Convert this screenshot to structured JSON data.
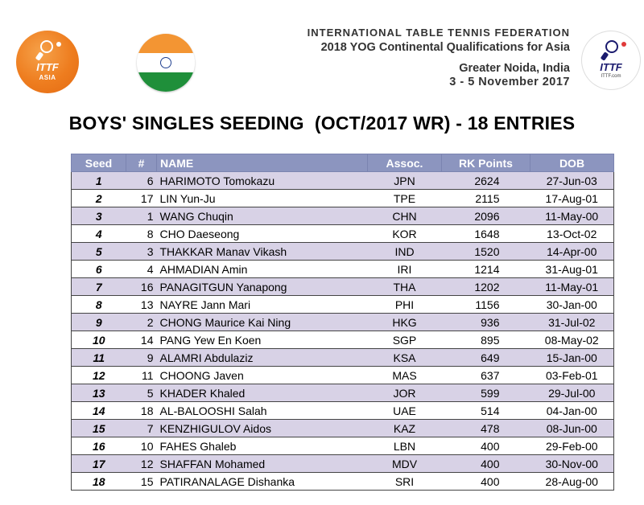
{
  "header": {
    "left_logo": {
      "ittf": "ITTF",
      "region": "ASIA",
      "icon": "ittf-asia-logo-icon"
    },
    "flag": {
      "icon": "india-flag-icon"
    },
    "federation": "INTERNATIONAL TABLE TENNIS FEDERATION",
    "event": "2018 YOG Continental Qualifications for Asia",
    "venue": "Greater Noida, India",
    "dates": "3 - 5 November 2017",
    "right_logo": {
      "ittf": "ITTF",
      "url": "ITTF.com",
      "icon": "ittf-logo-icon"
    }
  },
  "title": "BOYS' SINGLES SEEDING  (OCT/2017 WR) - 18 ENTRIES",
  "table": {
    "columns": {
      "seed": "Seed",
      "num": "#",
      "name": "NAME",
      "assoc": "Assoc.",
      "rk_points": "RK Points",
      "dob": "DOB"
    },
    "rows": [
      {
        "seed": "1",
        "num": "6",
        "name": "HARIMOTO Tomokazu",
        "assoc": "JPN",
        "rk_points": "2624",
        "dob": "27-Jun-03"
      },
      {
        "seed": "2",
        "num": "17",
        "name": "LIN Yun-Ju",
        "assoc": "TPE",
        "rk_points": "2115",
        "dob": "17-Aug-01"
      },
      {
        "seed": "3",
        "num": "1",
        "name": "WANG Chuqin",
        "assoc": "CHN",
        "rk_points": "2096",
        "dob": "11-May-00"
      },
      {
        "seed": "4",
        "num": "8",
        "name": "CHO Daeseong",
        "assoc": "KOR",
        "rk_points": "1648",
        "dob": "13-Oct-02"
      },
      {
        "seed": "5",
        "num": "3",
        "name": "THAKKAR Manav Vikash",
        "assoc": "IND",
        "rk_points": "1520",
        "dob": "14-Apr-00"
      },
      {
        "seed": "6",
        "num": "4",
        "name": "AHMADIAN Amin",
        "assoc": "IRI",
        "rk_points": "1214",
        "dob": "31-Aug-01"
      },
      {
        "seed": "7",
        "num": "16",
        "name": "PANAGITGUN Yanapong",
        "assoc": "THA",
        "rk_points": "1202",
        "dob": "11-May-01"
      },
      {
        "seed": "8",
        "num": "13",
        "name": "NAYRE Jann Mari",
        "assoc": "PHI",
        "rk_points": "1156",
        "dob": "30-Jan-00"
      },
      {
        "seed": "9",
        "num": "2",
        "name": "CHONG Maurice Kai Ning",
        "assoc": "HKG",
        "rk_points": "936",
        "dob": "31-Jul-02"
      },
      {
        "seed": "10",
        "num": "14",
        "name": "PANG Yew En Koen",
        "assoc": "SGP",
        "rk_points": "895",
        "dob": "08-May-02"
      },
      {
        "seed": "11",
        "num": "9",
        "name": "ALAMRI Abdulaziz",
        "assoc": "KSA",
        "rk_points": "649",
        "dob": "15-Jan-00"
      },
      {
        "seed": "12",
        "num": "11",
        "name": "CHOONG Javen",
        "assoc": "MAS",
        "rk_points": "637",
        "dob": "03-Feb-01"
      },
      {
        "seed": "13",
        "num": "5",
        "name": "KHADER Khaled",
        "assoc": "JOR",
        "rk_points": "599",
        "dob": "29-Jul-00"
      },
      {
        "seed": "14",
        "num": "18",
        "name": "AL-BALOOSHI Salah",
        "assoc": "UAE",
        "rk_points": "514",
        "dob": "04-Jan-00"
      },
      {
        "seed": "15",
        "num": "7",
        "name": "KENZHIGULOV Aidos",
        "assoc": "KAZ",
        "rk_points": "478",
        "dob": "08-Jun-00"
      },
      {
        "seed": "16",
        "num": "10",
        "name": "FAHES Ghaleb",
        "assoc": "LBN",
        "rk_points": "400",
        "dob": "29-Feb-00"
      },
      {
        "seed": "17",
        "num": "12",
        "name": "SHAFFAN Mohamed",
        "assoc": "MDV",
        "rk_points": "400",
        "dob": "30-Nov-00"
      },
      {
        "seed": "18",
        "num": "15",
        "name": "PATIRANALAGE Dishanka",
        "assoc": "SRI",
        "rk_points": "400",
        "dob": "28-Aug-00"
      }
    ]
  },
  "colors": {
    "header_row": "#8c95bf",
    "odd_row": "#d8d2e6",
    "even_row": "#ffffff",
    "asia_logo": "#ee7d1f"
  }
}
